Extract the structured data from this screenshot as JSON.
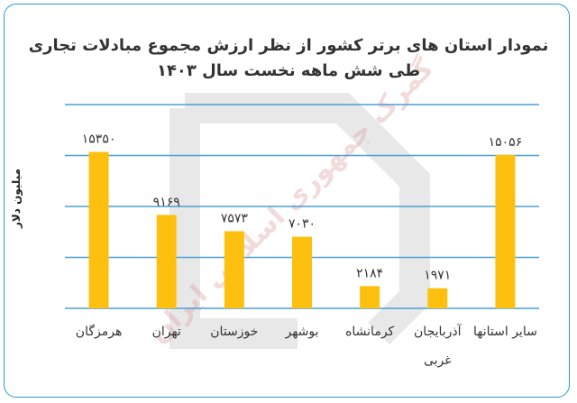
{
  "chart_data": {
    "type": "bar",
    "title": "نمودار استان های برتر کشور از نظر ارزش مجموع مبادلات تجاری",
    "subtitle": "طی شش ماهه نخست سال ۱۴۰۳",
    "xlabel": "",
    "ylabel": "میلیون دلار",
    "categories": [
      "هرمزگان",
      "تهران",
      "خوزستان",
      "بوشهر",
      "کرمانشاه",
      "آذربایجان غربی",
      "سایر استانها"
    ],
    "category_lines": [
      [
        "هرمزگان"
      ],
      [
        "تهران"
      ],
      [
        "خوزستان"
      ],
      [
        "بوشهر"
      ],
      [
        "کرمانشاه"
      ],
      [
        "آذربایجان",
        "غربی"
      ],
      [
        "سایر استانها"
      ]
    ],
    "values": [
      15350,
      9169,
      7573,
      7030,
      2184,
      1971,
      15056
    ],
    "data_labels": [
      "۱۵۳۵۰",
      "۹۱۶۹",
      "۷۵۷۳",
      "۷۰۳۰",
      "۲۱۸۴",
      "۱۹۷۱",
      "۱۵۰۵۶"
    ],
    "ylim": [
      0,
      20000
    ],
    "grid": true,
    "legend": "none",
    "colors": {
      "bar": "#fdc00f",
      "grid": "#4aa0d5",
      "axis": "#4aa0d5",
      "border": "#2e9bd6",
      "text": "#333333",
      "watermark": "#bbbbbb",
      "watermark_text": "#e8b4b4"
    }
  },
  "watermark": {
    "text": "گمرک جمهوری اسلامی ایران"
  }
}
